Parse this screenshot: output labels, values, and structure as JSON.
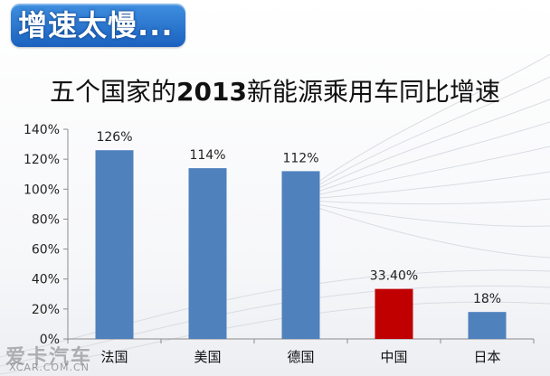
{
  "headline": "增速太慢...",
  "title_parts": {
    "prefix": "五个国家的",
    "year": "2013",
    "suffix": "新能源乘用车同比增速"
  },
  "watermark": {
    "logo_text": "爱卡汽车",
    "url": "XCAR.COM.CN"
  },
  "colors": {
    "bar_default": "#4f81bd",
    "bar_highlight": "#c00000",
    "headline_bg": "#1f6fd0"
  },
  "chart_data": {
    "type": "bar",
    "title": "五个国家的2013新能源乘用车同比增速",
    "categories": [
      "法国",
      "美国",
      "德国",
      "中国",
      "日本"
    ],
    "values": [
      126,
      114,
      112,
      33.4,
      18
    ],
    "data_labels": [
      "126%",
      "114%",
      "112%",
      "33.40%",
      "18%"
    ],
    "highlight_category": "中国",
    "ylim": [
      0,
      140
    ],
    "y_ticks": [
      0,
      20,
      40,
      60,
      80,
      100,
      120,
      140
    ],
    "y_tick_labels": [
      "0%",
      "20%",
      "40%",
      "60%",
      "80%",
      "100%",
      "120%",
      "140%"
    ],
    "grid": false,
    "legend": "none"
  }
}
